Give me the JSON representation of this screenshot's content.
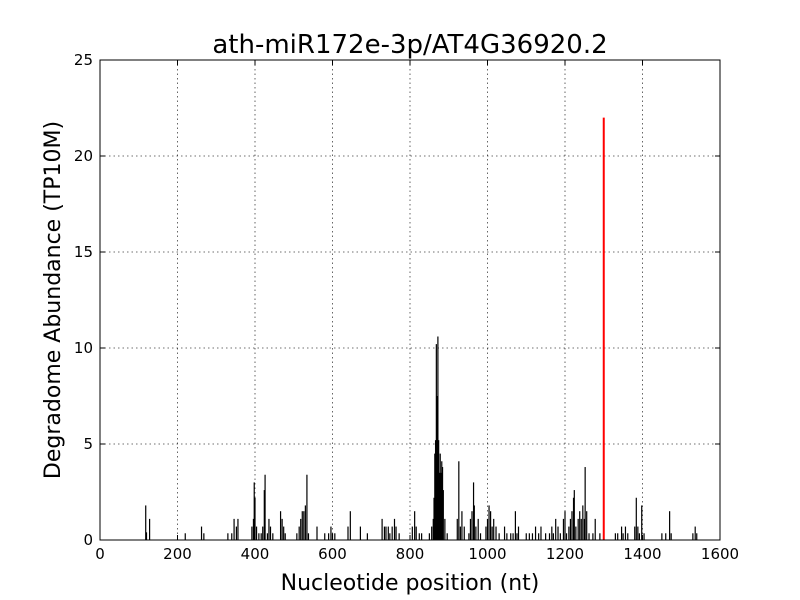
{
  "chart_data": {
    "type": "bar",
    "title": "ath-miR172e-3p/AT4G36920.2",
    "xlabel": "Nucleotide position (nt)",
    "ylabel": "Degradome Abundance (TP10M)",
    "xlim": [
      0,
      1600
    ],
    "ylim": [
      0,
      25
    ],
    "xticks": [
      "0",
      "200",
      "400",
      "600",
      "800",
      "1000",
      "1200",
      "1400",
      "1600"
    ],
    "yticks": [
      "0",
      "5",
      "10",
      "15",
      "20",
      "25"
    ],
    "grid": true,
    "colors": {
      "series": "#000000",
      "highlight": "#ff0000"
    },
    "series": [
      {
        "points": [
          [
            118,
            1.8
          ],
          [
            120,
            0.4
          ],
          [
            128,
            1.1
          ],
          [
            220,
            0.35
          ],
          [
            262,
            0.7
          ],
          [
            268,
            0.35
          ],
          [
            330,
            0.35
          ],
          [
            340,
            0.35
          ],
          [
            346,
            1.1
          ],
          [
            352,
            0.7
          ],
          [
            356,
            1.1
          ],
          [
            392,
            0.7
          ],
          [
            396,
            1.1
          ],
          [
            398,
            3.0
          ],
          [
            400,
            2.2
          ],
          [
            404,
            0.7
          ],
          [
            410,
            0.35
          ],
          [
            416,
            0.35
          ],
          [
            420,
            0.7
          ],
          [
            424,
            2.6
          ],
          [
            426,
            3.4
          ],
          [
            432,
            0.35
          ],
          [
            436,
            1.1
          ],
          [
            440,
            0.7
          ],
          [
            446,
            0.35
          ],
          [
            466,
            1.5
          ],
          [
            470,
            1.1
          ],
          [
            474,
            0.7
          ],
          [
            478,
            0.35
          ],
          [
            508,
            0.35
          ],
          [
            514,
            0.7
          ],
          [
            518,
            1.1
          ],
          [
            522,
            1.5
          ],
          [
            526,
            1.5
          ],
          [
            530,
            1.8
          ],
          [
            534,
            3.4
          ],
          [
            538,
            0.35
          ],
          [
            560,
            0.7
          ],
          [
            580,
            0.35
          ],
          [
            590,
            0.35
          ],
          [
            596,
            0.7
          ],
          [
            600,
            0.35
          ],
          [
            606,
            0.35
          ],
          [
            640,
            0.7
          ],
          [
            646,
            1.5
          ],
          [
            672,
            0.7
          ],
          [
            690,
            0.35
          ],
          [
            728,
            1.1
          ],
          [
            734,
            0.7
          ],
          [
            738,
            0.7
          ],
          [
            744,
            0.7
          ],
          [
            748,
            0.35
          ],
          [
            754,
            0.7
          ],
          [
            760,
            1.1
          ],
          [
            764,
            0.7
          ],
          [
            772,
            0.35
          ],
          [
            806,
            0.7
          ],
          [
            812,
            1.5
          ],
          [
            816,
            0.7
          ],
          [
            824,
            0.35
          ],
          [
            830,
            0.35
          ],
          [
            850,
            0.35
          ],
          [
            856,
            0.7
          ],
          [
            860,
            1.1
          ],
          [
            862,
            2.2
          ],
          [
            864,
            4.5
          ],
          [
            866,
            5.2
          ],
          [
            868,
            10.2
          ],
          [
            870,
            7.5
          ],
          [
            872,
            10.6
          ],
          [
            874,
            5.2
          ],
          [
            876,
            3.5
          ],
          [
            878,
            4.5
          ],
          [
            880,
            3.5
          ],
          [
            882,
            4.1
          ],
          [
            884,
            3.8
          ],
          [
            886,
            2.6
          ],
          [
            890,
            1.1
          ],
          [
            896,
            0.35
          ],
          [
            922,
            1.1
          ],
          [
            926,
            4.1
          ],
          [
            930,
            0.7
          ],
          [
            934,
            1.5
          ],
          [
            940,
            0.7
          ],
          [
            952,
            0.35
          ],
          [
            956,
            1.1
          ],
          [
            960,
            1.5
          ],
          [
            964,
            3.0
          ],
          [
            966,
            1.8
          ],
          [
            970,
            0.7
          ],
          [
            976,
            1.1
          ],
          [
            982,
            0.35
          ],
          [
            996,
            0.7
          ],
          [
            1000,
            1.1
          ],
          [
            1004,
            1.8
          ],
          [
            1008,
            1.5
          ],
          [
            1012,
            0.7
          ],
          [
            1016,
            1.1
          ],
          [
            1022,
            0.7
          ],
          [
            1030,
            0.35
          ],
          [
            1044,
            0.7
          ],
          [
            1050,
            0.35
          ],
          [
            1060,
            0.35
          ],
          [
            1066,
            0.35
          ],
          [
            1072,
            1.5
          ],
          [
            1076,
            0.35
          ],
          [
            1080,
            0.7
          ],
          [
            1100,
            0.35
          ],
          [
            1108,
            0.35
          ],
          [
            1116,
            0.35
          ],
          [
            1124,
            0.7
          ],
          [
            1132,
            0.35
          ],
          [
            1138,
            0.7
          ],
          [
            1150,
            0.35
          ],
          [
            1160,
            0.35
          ],
          [
            1166,
            0.7
          ],
          [
            1170,
            0.35
          ],
          [
            1176,
            1.1
          ],
          [
            1182,
            0.7
          ],
          [
            1188,
            0.35
          ],
          [
            1196,
            1.1
          ],
          [
            1200,
            1.5
          ],
          [
            1204,
            0.35
          ],
          [
            1210,
            0.7
          ],
          [
            1214,
            1.1
          ],
          [
            1218,
            1.5
          ],
          [
            1222,
            2.2
          ],
          [
            1224,
            2.6
          ],
          [
            1228,
            0.7
          ],
          [
            1234,
            1.1
          ],
          [
            1238,
            1.5
          ],
          [
            1242,
            1.1
          ],
          [
            1246,
            1.8
          ],
          [
            1250,
            1.1
          ],
          [
            1252,
            3.8
          ],
          [
            1256,
            1.5
          ],
          [
            1262,
            0.35
          ],
          [
            1272,
            0.35
          ],
          [
            1278,
            1.1
          ],
          [
            1290,
            0.35
          ],
          [
            1330,
            0.35
          ],
          [
            1336,
            0.35
          ],
          [
            1346,
            0.7
          ],
          [
            1350,
            0.35
          ],
          [
            1356,
            0.7
          ],
          [
            1362,
            0.35
          ],
          [
            1380,
            0.7
          ],
          [
            1384,
            2.2
          ],
          [
            1388,
            0.7
          ],
          [
            1392,
            0.35
          ],
          [
            1398,
            1.8
          ],
          [
            1404,
            0.35
          ],
          [
            1450,
            0.35
          ],
          [
            1460,
            0.35
          ],
          [
            1470,
            1.5
          ],
          [
            1474,
            0.35
          ],
          [
            1530,
            0.35
          ],
          [
            1536,
            0.7
          ],
          [
            1540,
            0.35
          ]
        ]
      },
      {
        "points": [
          [
            1300,
            22.0
          ]
        ]
      }
    ]
  }
}
